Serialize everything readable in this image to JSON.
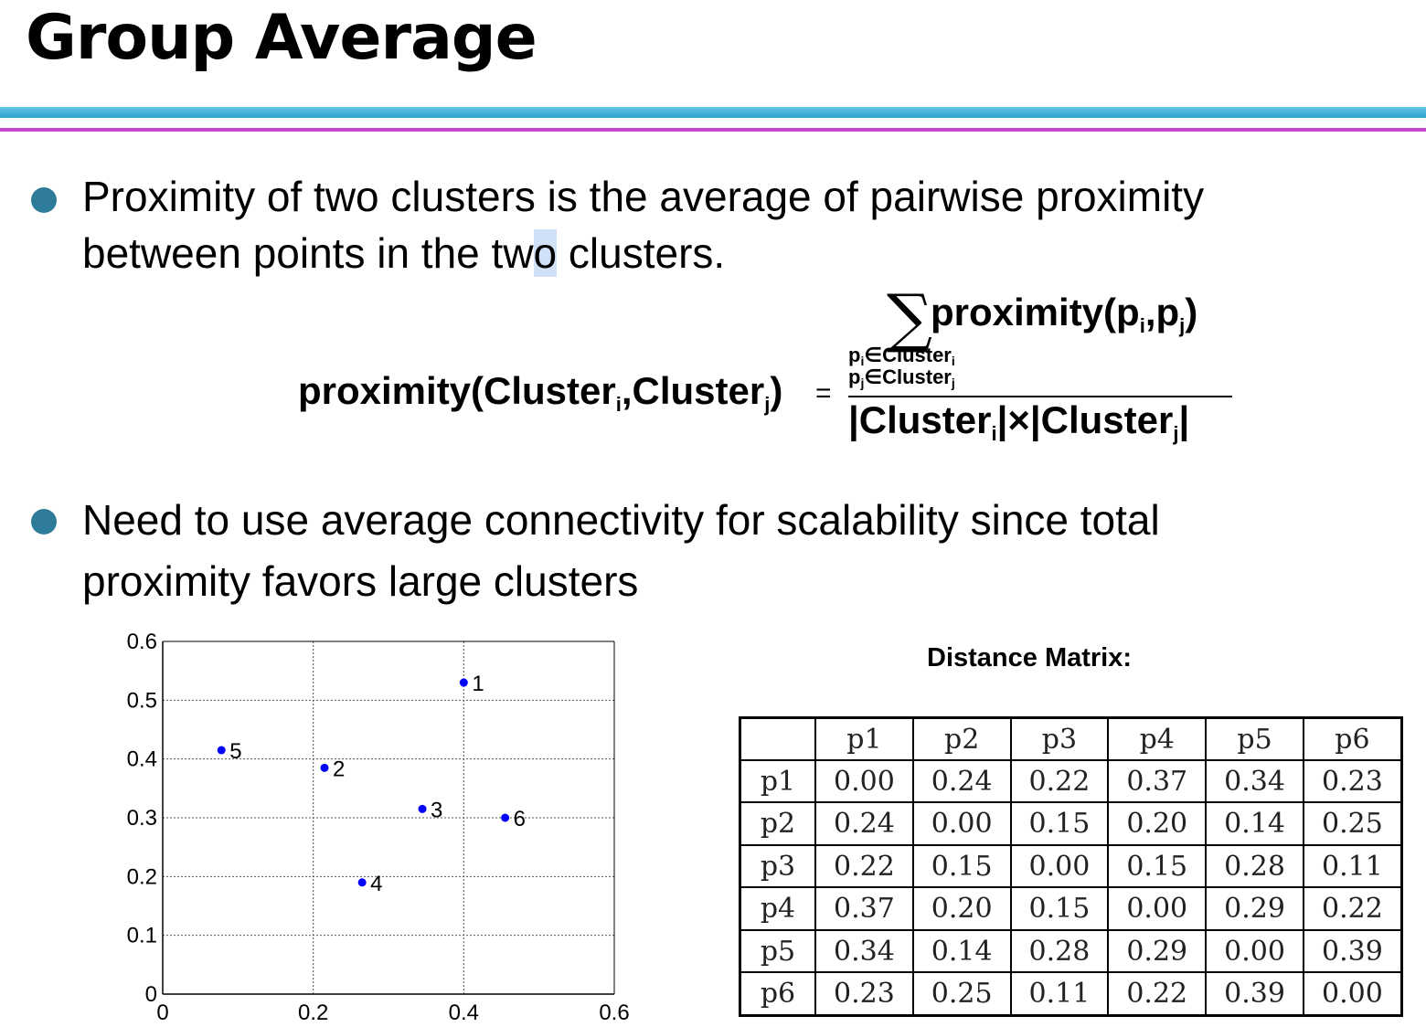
{
  "slide": {
    "title": "Group Average",
    "bullets": [
      {
        "text_before": "Proximity of two clusters is the average of pairwise proximity",
        "line2_a": "between points in the tw",
        "line2_hl": "o",
        "line2_b": " clusters."
      },
      {
        "line1": "Need to use average connectivity for scalability since total",
        "line2": "proximity favors large clusters"
      }
    ],
    "colors": {
      "bullet": "#2f7c9a",
      "rule_top": "#3fb2d8",
      "rule_bottom": "#c545cf",
      "point": "#0000ff"
    }
  },
  "formula": {
    "lhs_word": "proximity(Cluster",
    "lhs_sub_i": "i",
    "lhs_mid": ",Cluster",
    "lhs_sub_j": "j",
    "lhs_end": ")",
    "equals": "=",
    "sigma": "∑",
    "num_word": "proximity(p",
    "num_sub_i": "i",
    "num_mid": ",p",
    "num_sub_j": "j",
    "num_end": ")",
    "sum_cond1": "p",
    "sum_cond1_sub": "i",
    "sum_cond1_rest": "∈Cluster",
    "sum_cond1_sub2": "i",
    "sum_cond2": "p",
    "sum_cond2_sub": "j",
    "sum_cond2_rest": "∈Cluster",
    "sum_cond2_sub2": "j",
    "den_a": "|Cluster",
    "den_sub_i": "i",
    "den_mid": "|×|Cluster",
    "den_sub_j": "j",
    "den_end": "|"
  },
  "chart_data": {
    "type": "scatter",
    "title": "",
    "xlabel": "",
    "ylabel": "",
    "xlim": [
      0,
      0.6
    ],
    "ylim": [
      0,
      0.6
    ],
    "x_ticks": [
      "0",
      "0.2",
      "0.4",
      "0.6"
    ],
    "y_ticks": [
      "0",
      "0.1",
      "0.2",
      "0.3",
      "0.4",
      "0.5",
      "0.6"
    ],
    "grid": true,
    "points": [
      {
        "label": "1",
        "x": 0.4,
        "y": 0.53
      },
      {
        "label": "2",
        "x": 0.215,
        "y": 0.385
      },
      {
        "label": "3",
        "x": 0.345,
        "y": 0.315
      },
      {
        "label": "4",
        "x": 0.265,
        "y": 0.19
      },
      {
        "label": "5",
        "x": 0.078,
        "y": 0.415
      },
      {
        "label": "6",
        "x": 0.455,
        "y": 0.3
      }
    ]
  },
  "distance_matrix": {
    "title": "Distance Matrix:",
    "headers": [
      "",
      "p1",
      "p2",
      "p3",
      "p4",
      "p5",
      "p6"
    ],
    "rows": [
      [
        "p1",
        "0.00",
        "0.24",
        "0.22",
        "0.37",
        "0.34",
        "0.23"
      ],
      [
        "p2",
        "0.24",
        "0.00",
        "0.15",
        "0.20",
        "0.14",
        "0.25"
      ],
      [
        "p3",
        "0.22",
        "0.15",
        "0.00",
        "0.15",
        "0.28",
        "0.11"
      ],
      [
        "p4",
        "0.37",
        "0.20",
        "0.15",
        "0.00",
        "0.29",
        "0.22"
      ],
      [
        "p5",
        "0.34",
        "0.14",
        "0.28",
        "0.29",
        "0.00",
        "0.39"
      ],
      [
        "p6",
        "0.23",
        "0.25",
        "0.11",
        "0.22",
        "0.39",
        "0.00"
      ]
    ]
  }
}
